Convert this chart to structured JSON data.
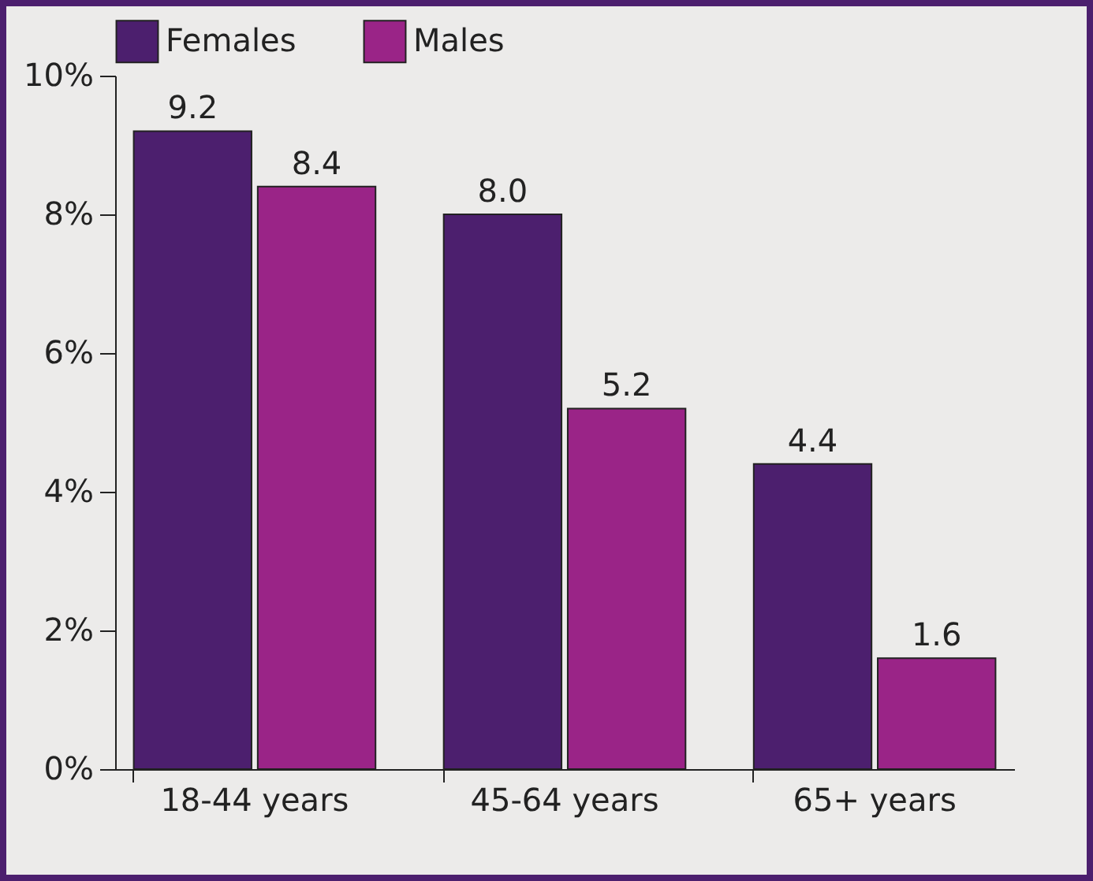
{
  "chart_data": {
    "type": "bar",
    "categories": [
      "18-44 years",
      "45-64 years",
      "65+ years"
    ],
    "series": [
      {
        "name": "Females",
        "color": "#4c1f6e",
        "values": [
          9.2,
          8.0,
          4.4
        ],
        "value_labels": [
          "9.2",
          "8.0",
          "4.4"
        ]
      },
      {
        "name": "Males",
        "color": "#9a2487",
        "values": [
          8.4,
          5.2,
          1.6
        ],
        "value_labels": [
          "8.4",
          "5.2",
          "1.6"
        ]
      }
    ],
    "ylim": [
      0,
      10
    ],
    "yticks": [
      {
        "value": 0,
        "label": "0%"
      },
      {
        "value": 2,
        "label": "2%"
      },
      {
        "value": 4,
        "label": "4%"
      },
      {
        "value": 6,
        "label": "6%"
      },
      {
        "value": 8,
        "label": "8%"
      },
      {
        "value": 10,
        "label": "10%"
      }
    ],
    "grid": false,
    "legend": "top"
  }
}
